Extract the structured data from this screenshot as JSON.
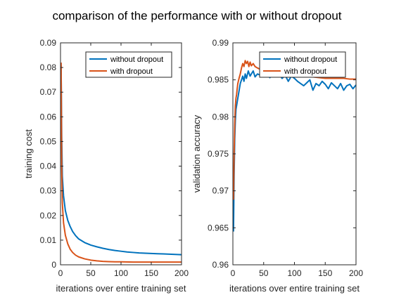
{
  "figure": {
    "title": "comparison of the performance with or without dropout"
  },
  "colors": {
    "without_dropout": "#0072BD",
    "with_dropout": "#D95319",
    "axis": "#262626"
  },
  "chart_data": [
    {
      "type": "line",
      "xlabel": "iterations over entire training set",
      "ylabel": "training cost",
      "xlim": [
        0,
        200
      ],
      "ylim": [
        0,
        0.09
      ],
      "xticks": [
        0,
        50,
        100,
        150,
        200
      ],
      "xtick_labels": [
        "0",
        "50",
        "100",
        "150",
        "200"
      ],
      "yticks": [
        0,
        0.01,
        0.02,
        0.03,
        0.04,
        0.05,
        0.06,
        0.07,
        0.08,
        0.09
      ],
      "ytick_labels": [
        "0",
        "0.01",
        "0.02",
        "0.03",
        "0.04",
        "0.05",
        "0.06",
        "0.07",
        "0.08",
        "0.09"
      ],
      "legend_position": "top-right",
      "grid": false,
      "series": [
        {
          "name": "without dropout",
          "x": [
            1,
            2,
            3,
            5,
            8,
            12,
            16,
            20,
            25,
            30,
            40,
            50,
            60,
            70,
            80,
            90,
            100,
            110,
            120,
            130,
            140,
            150,
            160,
            170,
            180,
            190,
            200
          ],
          "y": [
            0.081,
            0.052,
            0.036,
            0.028,
            0.022,
            0.018,
            0.0155,
            0.0135,
            0.0118,
            0.0105,
            0.009,
            0.008,
            0.0073,
            0.0067,
            0.0062,
            0.0058,
            0.0055,
            0.0052,
            0.005,
            0.0048,
            0.0047,
            0.0046,
            0.0045,
            0.0044,
            0.0043,
            0.0042,
            0.0041
          ]
        },
        {
          "name": "with dropout",
          "x": [
            1,
            2,
            3,
            5,
            8,
            12,
            16,
            20,
            25,
            30,
            40,
            50,
            60,
            70,
            80,
            90,
            100,
            120,
            140,
            160,
            180,
            200
          ],
          "y": [
            0.082,
            0.04,
            0.025,
            0.017,
            0.012,
            0.0085,
            0.0063,
            0.005,
            0.0039,
            0.0032,
            0.0024,
            0.0019,
            0.0016,
            0.0014,
            0.0013,
            0.0012,
            0.0012,
            0.0011,
            0.0011,
            0.0011,
            0.0011,
            0.0011
          ]
        }
      ]
    },
    {
      "type": "line",
      "xlabel": "iterations over entire training set",
      "ylabel": "validation accuracy",
      "xlim": [
        0,
        200
      ],
      "ylim": [
        0.96,
        0.99
      ],
      "xticks": [
        0,
        50,
        100,
        150,
        200
      ],
      "xtick_labels": [
        "0",
        "50",
        "100",
        "150",
        "200"
      ],
      "yticks": [
        0.96,
        0.965,
        0.97,
        0.975,
        0.98,
        0.985,
        0.99
      ],
      "ytick_labels": [
        "0.96",
        "0.965",
        "0.97",
        "0.975",
        "0.98",
        "0.985",
        "0.99"
      ],
      "legend_position": "top-right",
      "grid": false,
      "series": [
        {
          "name": "without dropout",
          "x": [
            1,
            2,
            3,
            4,
            5,
            6,
            7,
            8,
            10,
            12,
            14,
            16,
            18,
            20,
            22,
            25,
            28,
            30,
            33,
            36,
            40,
            45,
            50,
            55,
            60,
            65,
            70,
            75,
            80,
            85,
            90,
            95,
            100,
            105,
            110,
            115,
            120,
            125,
            130,
            135,
            140,
            145,
            150,
            155,
            160,
            165,
            170,
            175,
            180,
            185,
            190,
            195,
            200
          ],
          "y": [
            0.9645,
            0.972,
            0.977,
            0.9795,
            0.981,
            0.9815,
            0.982,
            0.9825,
            0.9835,
            0.9845,
            0.985,
            0.9855,
            0.9848,
            0.9858,
            0.9852,
            0.9862,
            0.9855,
            0.9858,
            0.9862,
            0.9854,
            0.9858,
            0.9856,
            0.9855,
            0.9858,
            0.9853,
            0.9857,
            0.9854,
            0.9857,
            0.9852,
            0.9856,
            0.9848,
            0.9855,
            0.9852,
            0.9848,
            0.9845,
            0.9842,
            0.9846,
            0.985,
            0.9836,
            0.9845,
            0.9842,
            0.9848,
            0.9844,
            0.9838,
            0.9846,
            0.9842,
            0.9838,
            0.9845,
            0.9836,
            0.9842,
            0.9844,
            0.9838,
            0.9843
          ]
        },
        {
          "name": "with dropout",
          "x": [
            1,
            2,
            3,
            4,
            5,
            6,
            7,
            8,
            10,
            12,
            14,
            16,
            18,
            20,
            22,
            24,
            26,
            28,
            30,
            33,
            36,
            40,
            45,
            50,
            55,
            60,
            65,
            70,
            75,
            80,
            85,
            90,
            95,
            100,
            110,
            120,
            130,
            140,
            150,
            160,
            170,
            180,
            190,
            200
          ],
          "y": [
            0.9688,
            0.975,
            0.979,
            0.9815,
            0.9825,
            0.983,
            0.9838,
            0.9845,
            0.9852,
            0.9858,
            0.9866,
            0.9872,
            0.9868,
            0.9876,
            0.9872,
            0.9875,
            0.9868,
            0.9874,
            0.9869,
            0.9872,
            0.9868,
            0.9866,
            0.9864,
            0.9862,
            0.9864,
            0.986,
            0.9862,
            0.9858,
            0.9861,
            0.9857,
            0.986,
            0.9856,
            0.9858,
            0.9856,
            0.9855,
            0.9854,
            0.9854,
            0.9853,
            0.9852,
            0.9852,
            0.9852,
            0.9852,
            0.9851,
            0.9851
          ]
        }
      ]
    }
  ]
}
